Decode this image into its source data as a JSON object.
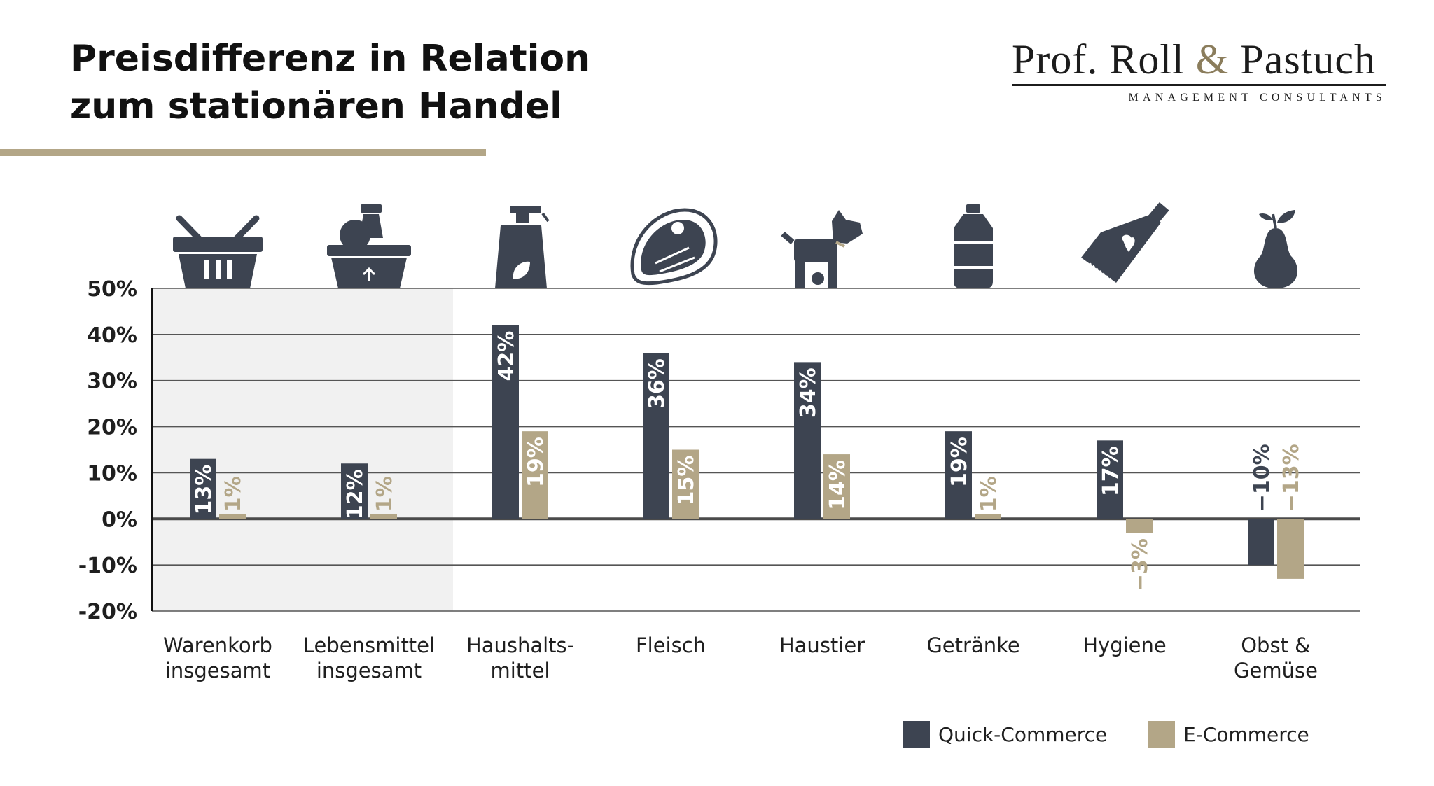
{
  "header": {
    "title_line1": "Preisdifferenz in Relation",
    "title_line2": "zum stationären Handel"
  },
  "brand": {
    "name_part1": "Prof. Roll",
    "amp": "&",
    "name_part2": "Pastuch",
    "subtitle": "MANAGEMENT CONSULTANTS"
  },
  "colors": {
    "quick": "#3d4451",
    "ecom": "#b3a687",
    "accent": "#b3a687",
    "highlight_bg": "#f1f1f1",
    "grid": "#555555",
    "text": "#1f1f1f"
  },
  "chart_data": {
    "type": "bar",
    "ylim": [
      -20,
      50
    ],
    "yticks": [
      50,
      40,
      30,
      20,
      10,
      0,
      -10,
      -20
    ],
    "ytick_labels": [
      "50%",
      "40%",
      "30%",
      "20%",
      "10%",
      "0%",
      "-10%",
      "-20%"
    ],
    "grid": true,
    "highlighted_categories": [
      0,
      1
    ],
    "categories": [
      [
        "Warenkorb",
        "insgesamt"
      ],
      [
        "Lebensmittel",
        "insgesamt"
      ],
      [
        "Haushalts-",
        "mittel"
      ],
      [
        "Fleisch"
      ],
      [
        "Haustier"
      ],
      [
        "Getränke"
      ],
      [
        "Hygiene"
      ],
      [
        "Obst &",
        "Gemüse"
      ]
    ],
    "icons": [
      "basket-icon",
      "grocery-basket-icon",
      "spray-bottle-icon",
      "steak-icon",
      "dog-icon",
      "bottle-icon",
      "toothpaste-icon",
      "pear-icon"
    ],
    "series": [
      {
        "name": "Quick-Commerce",
        "values": [
          13,
          12,
          42,
          36,
          34,
          19,
          17,
          -10
        ],
        "labels": [
          "13%",
          "12%",
          "42%",
          "36%",
          "34%",
          "19%",
          "17%",
          "−10%"
        ]
      },
      {
        "name": "E-Commerce",
        "values": [
          1,
          1,
          19,
          15,
          14,
          1,
          -3,
          -13
        ],
        "labels": [
          "1%",
          "1%",
          "19%",
          "15%",
          "14%",
          "1%",
          "−3%",
          "−13%"
        ]
      }
    ],
    "legend_position": "bottom-right"
  }
}
